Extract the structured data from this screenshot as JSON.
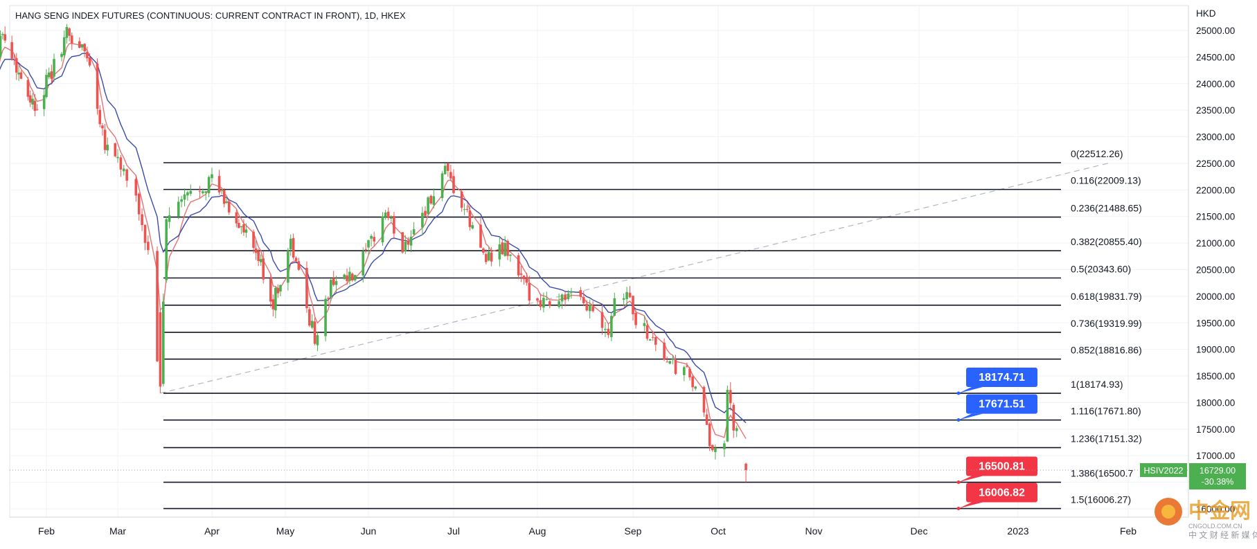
{
  "chart_data": {
    "type": "candlestick",
    "title": "HANG SENG INDEX FUTURES (CONTINUOUS: CURRENT CONTRACT IN FRONT), 1D, HKEX",
    "currency_label": "HKD",
    "y_axis": {
      "min": 15800,
      "max": 25400,
      "ticks": [
        "25000.00",
        "24500.00",
        "24000.00",
        "23500.00",
        "23000.00",
        "22500.00",
        "22000.00",
        "21500.00",
        "21000.00",
        "20500.00",
        "20000.00",
        "19500.00",
        "19000.00",
        "18500.00",
        "18000.00",
        "17500.00",
        "17000.00",
        "16000.00"
      ],
      "grid": true
    },
    "x_axis": {
      "labels": [
        "Feb",
        "Mar",
        "Apr",
        "May",
        "Jun",
        "Jul",
        "Aug",
        "Sep",
        "Oct",
        "Nov",
        "Dec",
        "2023",
        "Feb"
      ],
      "grid": true
    },
    "series": [
      {
        "name": "Hang Seng Index Futures",
        "type": "candlestick",
        "up_color": "#4caf50",
        "down_color": "#ef5350",
        "anchors": [
          [
            "2022-01-10",
            24150
          ],
          [
            "2022-01-12",
            25050
          ],
          [
            "2022-01-20",
            24200
          ],
          [
            "2022-01-27",
            23550
          ],
          [
            "2022-02-03",
            24200
          ],
          [
            "2022-02-09",
            24950
          ],
          [
            "2022-02-17",
            24550
          ],
          [
            "2022-02-24",
            22900
          ],
          [
            "2022-03-01",
            22600
          ],
          [
            "2022-03-08",
            21600
          ],
          [
            "2022-03-11",
            20800
          ],
          [
            "2022-03-15",
            18200
          ],
          [
            "2022-03-16",
            19700
          ],
          [
            "2022-03-17",
            21450
          ],
          [
            "2022-03-24",
            21900
          ],
          [
            "2022-04-01",
            22200
          ],
          [
            "2022-04-06",
            21800
          ],
          [
            "2022-04-12",
            21350
          ],
          [
            "2022-04-20",
            20700
          ],
          [
            "2022-04-26",
            19850
          ],
          [
            "2022-05-03",
            21000
          ],
          [
            "2022-05-06",
            20400
          ],
          [
            "2022-05-12",
            19200
          ],
          [
            "2022-05-19",
            20350
          ],
          [
            "2022-05-26",
            20300
          ],
          [
            "2022-06-01",
            20900
          ],
          [
            "2022-06-07",
            21600
          ],
          [
            "2022-06-13",
            20900
          ],
          [
            "2022-06-17",
            21300
          ],
          [
            "2022-06-24",
            21900
          ],
          [
            "2022-06-28",
            22300
          ],
          [
            "2022-07-05",
            21600
          ],
          [
            "2022-07-11",
            20900
          ],
          [
            "2022-07-15",
            20700
          ],
          [
            "2022-07-20",
            20900
          ],
          [
            "2022-07-28",
            20100
          ],
          [
            "2022-08-04",
            19900
          ],
          [
            "2022-08-10",
            20000
          ],
          [
            "2022-08-18",
            19800
          ],
          [
            "2022-08-24",
            19400
          ],
          [
            "2022-08-26",
            20000
          ],
          [
            "2022-08-30",
            20100
          ],
          [
            "2022-09-02",
            19550
          ],
          [
            "2022-09-08",
            19200
          ],
          [
            "2022-09-14",
            18700
          ],
          [
            "2022-09-21",
            18500
          ],
          [
            "2022-09-26",
            17700
          ],
          [
            "2022-09-28",
            17200
          ],
          [
            "2022-10-03",
            17300
          ],
          [
            "2022-10-04",
            18100
          ],
          [
            "2022-10-06",
            17600
          ],
          [
            "2022-10-10",
            16729
          ]
        ]
      },
      {
        "name": "EMA fast",
        "type": "line",
        "color": "#e57373"
      },
      {
        "name": "EMA slow",
        "type": "line",
        "color": "#3949ab"
      }
    ],
    "fibonacci": {
      "levels": [
        {
          "label": "0(22512.26)",
          "value": 22512.26
        },
        {
          "label": "0.116(22009.13)",
          "value": 22009.13
        },
        {
          "label": "0.236(21488.65)",
          "value": 21488.65
        },
        {
          "label": "0.382(20855.40)",
          "value": 20855.4
        },
        {
          "label": "0.5(20343.60)",
          "value": 20343.6
        },
        {
          "label": "0.618(19831.79)",
          "value": 19831.79
        },
        {
          "label": "0.736(19319.99)",
          "value": 19319.99
        },
        {
          "label": "0.852(18816.86)",
          "value": 18816.86
        },
        {
          "label": "1(18174.93)",
          "value": 18174.93
        },
        {
          "label": "1.116(17671.80)",
          "value": 17671.8
        },
        {
          "label": "1.236(17151.32)",
          "value": 17151.32
        },
        {
          "label": "1.386(16500.7",
          "value": 16500.7
        },
        {
          "label": "1.5(16006.27)",
          "value": 16006.27
        }
      ],
      "trend_line": {
        "from": {
          "date": "2022-03-15",
          "value": 18174.93
        },
        "to": {
          "date": "2023-01-27",
          "value": 22512.26
        }
      }
    },
    "callouts": [
      {
        "label": "18174.71",
        "value": 18174.71,
        "color": "#2962ff"
      },
      {
        "label": "17671.51",
        "value": 17671.51,
        "color": "#2962ff"
      },
      {
        "label": "16500.81",
        "value": 16500.81,
        "color": "#f23645"
      },
      {
        "label": "16006.82",
        "value": 16006.82,
        "color": "#f23645"
      }
    ],
    "last_price": {
      "symbol": "HSIV2022",
      "value": 16729.0,
      "price_label": "16729.00",
      "change_label": "-30.38%",
      "color": "#4caf50"
    }
  },
  "watermark": {
    "text": "中金网",
    "subtitle": "CNGOLD.COM.CN",
    "caption": "中 文 财 经 新 媒 体"
  }
}
